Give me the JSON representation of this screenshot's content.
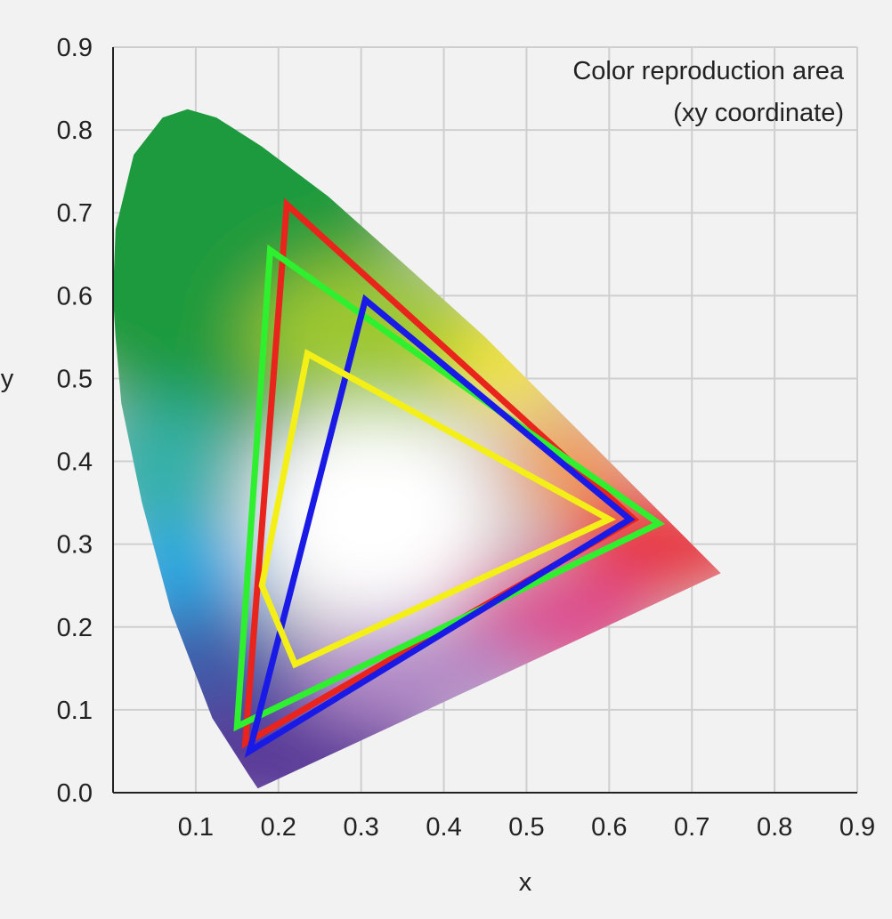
{
  "chart_data": {
    "type": "scatter",
    "title": "Color reproduction area",
    "subtitle": "(xy coordinate)",
    "xlabel": "x",
    "ylabel": "y",
    "xlim": [
      0,
      0.9
    ],
    "ylim": [
      0,
      0.9
    ],
    "x_ticks": [
      "0.1",
      "0.2",
      "0.3",
      "0.4",
      "0.5",
      "0.6",
      "0.7",
      "0.8",
      "0.9"
    ],
    "y_ticks": [
      "0.0",
      "0.1",
      "0.2",
      "0.3",
      "0.4",
      "0.5",
      "0.6",
      "0.7",
      "0.8",
      "0.9"
    ],
    "grid": true,
    "locus": [
      [
        0.175,
        0.005
      ],
      [
        0.165,
        0.02
      ],
      [
        0.12,
        0.09
      ],
      [
        0.07,
        0.22
      ],
      [
        0.035,
        0.35
      ],
      [
        0.01,
        0.47
      ],
      [
        0.003,
        0.55
      ],
      [
        0.0,
        0.6
      ],
      [
        0.003,
        0.68
      ],
      [
        0.025,
        0.77
      ],
      [
        0.06,
        0.815
      ],
      [
        0.09,
        0.825
      ],
      [
        0.125,
        0.815
      ],
      [
        0.18,
        0.78
      ],
      [
        0.26,
        0.72
      ],
      [
        0.35,
        0.64
      ],
      [
        0.45,
        0.55
      ],
      [
        0.55,
        0.45
      ],
      [
        0.65,
        0.35
      ],
      [
        0.735,
        0.265
      ]
    ],
    "series": [
      {
        "color": "#e8241c",
        "points": [
          [
            0.21,
            0.71
          ],
          [
            0.63,
            0.33
          ],
          [
            0.16,
            0.06
          ]
        ]
      },
      {
        "color": "#2ef02e",
        "points": [
          [
            0.19,
            0.655
          ],
          [
            0.66,
            0.325
          ],
          [
            0.15,
            0.08
          ]
        ]
      },
      {
        "color": "#1a1ae6",
        "points": [
          [
            0.305,
            0.595
          ],
          [
            0.625,
            0.33
          ],
          [
            0.165,
            0.05
          ]
        ]
      },
      {
        "color": "#f5ef18",
        "points": [
          [
            0.235,
            0.53
          ],
          [
            0.6,
            0.33
          ],
          [
            0.22,
            0.155
          ],
          [
            0.18,
            0.25
          ]
        ]
      }
    ]
  }
}
